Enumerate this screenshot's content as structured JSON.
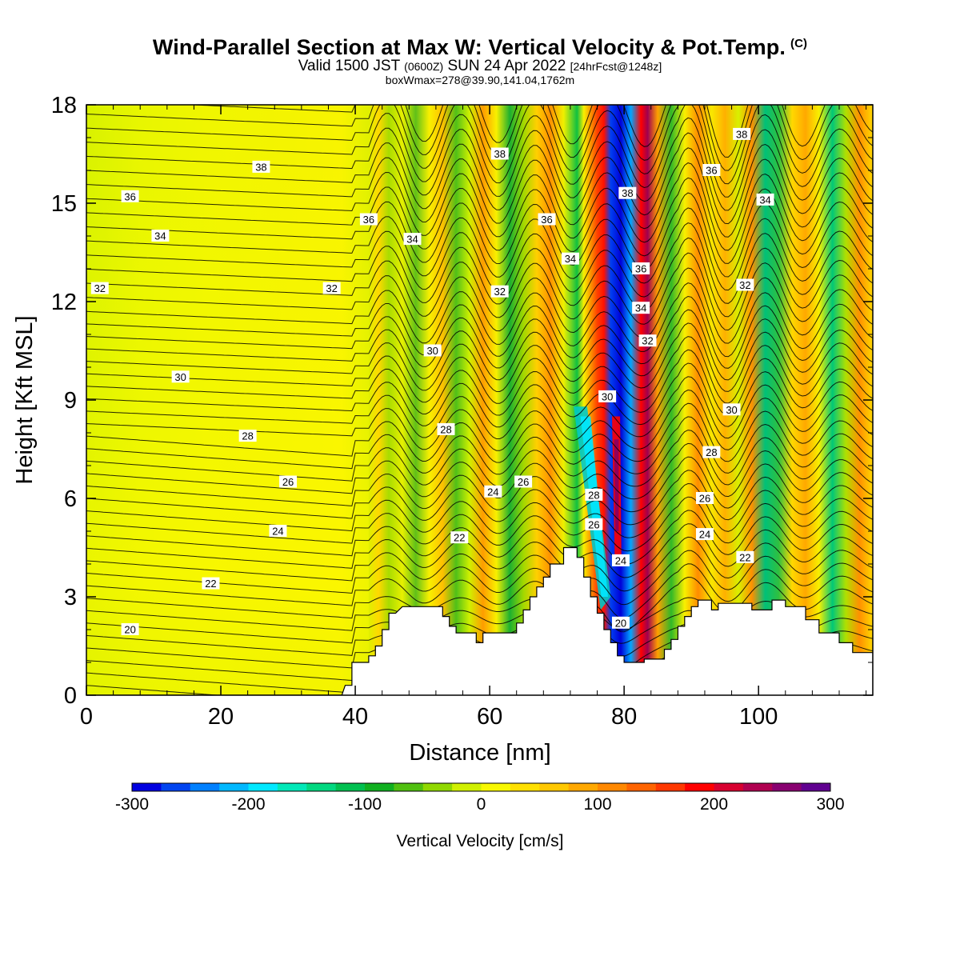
{
  "header": {
    "title_main": "Wind-Parallel Section at Max W: Vertical Velocity & Pot.Temp.",
    "title_mark": "(C)",
    "subtitle_part1": "Valid 1500 JST",
    "subtitle_utc": "(0600Z)",
    "subtitle_part2": "SUN 24 Apr 2022",
    "subtitle_fcst": "[24hrFcst@1248z]",
    "box_info": "boxWmax=278@39.90,141.04,1762m"
  },
  "chart_data": {
    "type": "heatmap",
    "xlabel": "Distance [nm]",
    "ylabel": "Height [Kft MSL]",
    "xlim": [
      0,
      117
    ],
    "ylim": [
      0,
      18
    ],
    "x_ticks": [
      "0",
      "20",
      "40",
      "60",
      "80",
      "100"
    ],
    "y_ticks": [
      "0",
      "3",
      "6",
      "9",
      "12",
      "15",
      "18"
    ],
    "colorbar": {
      "label": "Vertical Velocity [cm/s]",
      "tick_labels": [
        "-300",
        "-200",
        "-100",
        "0",
        "100",
        "200",
        "300"
      ],
      "range": [
        -300,
        300
      ],
      "colors": [
        "#0000e0",
        "#0044f0",
        "#0080ff",
        "#00b8ff",
        "#00e8ff",
        "#00e8b8",
        "#00d880",
        "#00c050",
        "#10b020",
        "#50c010",
        "#90d800",
        "#d0f000",
        "#f8f800",
        "#ffe000",
        "#ffc800",
        "#ffa800",
        "#ff8800",
        "#ff6400",
        "#ff3800",
        "#ff0000",
        "#d80030",
        "#b00050",
        "#880070",
        "#600090"
      ]
    },
    "theta_contour_labels": [
      {
        "value": "20",
        "x": 6.5,
        "y": 2.0
      },
      {
        "value": "22",
        "x": 18.5,
        "y": 3.4
      },
      {
        "value": "24",
        "x": 28.5,
        "y": 5.0
      },
      {
        "value": "26",
        "x": 30.0,
        "y": 6.5
      },
      {
        "value": "28",
        "x": 24.0,
        "y": 7.9
      },
      {
        "value": "30",
        "x": 14.0,
        "y": 9.7
      },
      {
        "value": "32",
        "x": 2.0,
        "y": 12.4
      },
      {
        "value": "34",
        "x": 11.0,
        "y": 14.0
      },
      {
        "value": "36",
        "x": 6.5,
        "y": 15.2
      },
      {
        "value": "38",
        "x": 26.0,
        "y": 16.1
      },
      {
        "value": "32",
        "x": 36.5,
        "y": 12.4
      },
      {
        "value": "36",
        "x": 42.0,
        "y": 14.5
      },
      {
        "value": "34",
        "x": 48.5,
        "y": 13.9
      },
      {
        "value": "30",
        "x": 51.5,
        "y": 10.5
      },
      {
        "value": "28",
        "x": 53.5,
        "y": 8.1
      },
      {
        "value": "22",
        "x": 55.5,
        "y": 4.8
      },
      {
        "value": "24",
        "x": 60.5,
        "y": 6.2
      },
      {
        "value": "26",
        "x": 65.0,
        "y": 6.5
      },
      {
        "value": "32",
        "x": 61.5,
        "y": 12.3
      },
      {
        "value": "38",
        "x": 61.5,
        "y": 16.5
      },
      {
        "value": "36",
        "x": 68.5,
        "y": 14.5
      },
      {
        "value": "34",
        "x": 72.0,
        "y": 13.3
      },
      {
        "value": "28",
        "x": 75.5,
        "y": 6.1
      },
      {
        "value": "26",
        "x": 75.5,
        "y": 5.2
      },
      {
        "value": "24",
        "x": 79.5,
        "y": 4.1
      },
      {
        "value": "20",
        "x": 79.5,
        "y": 2.2
      },
      {
        "value": "30",
        "x": 77.5,
        "y": 9.1
      },
      {
        "value": "38",
        "x": 80.5,
        "y": 15.3
      },
      {
        "value": "36",
        "x": 82.5,
        "y": 13.0
      },
      {
        "value": "34",
        "x": 82.5,
        "y": 11.8
      },
      {
        "value": "32",
        "x": 83.5,
        "y": 10.8
      },
      {
        "value": "30",
        "x": 96.0,
        "y": 8.7
      },
      {
        "value": "28",
        "x": 93.0,
        "y": 7.4
      },
      {
        "value": "26",
        "x": 92.0,
        "y": 6.0
      },
      {
        "value": "24",
        "x": 92.0,
        "y": 4.9
      },
      {
        "value": "22",
        "x": 98.0,
        "y": 4.2
      },
      {
        "value": "32",
        "x": 98.0,
        "y": 12.5
      },
      {
        "value": "34",
        "x": 101.0,
        "y": 15.1
      },
      {
        "value": "36",
        "x": 93.0,
        "y": 16.0
      },
      {
        "value": "38",
        "x": 97.5,
        "y": 17.1
      }
    ],
    "terrain_outline": [
      [
        0,
        0
      ],
      [
        38,
        0
      ],
      [
        38.5,
        0.3
      ],
      [
        39.5,
        0.3
      ],
      [
        39.5,
        1.0
      ],
      [
        42,
        1.0
      ],
      [
        42,
        1.2
      ],
      [
        43,
        1.2
      ],
      [
        43,
        1.5
      ],
      [
        44,
        1.5
      ],
      [
        44,
        2.0
      ],
      [
        45,
        2.0
      ],
      [
        45,
        2.5
      ],
      [
        46,
        2.5
      ],
      [
        47,
        2.7
      ],
      [
        50,
        2.7
      ],
      [
        50,
        2.7
      ],
      [
        53,
        2.7
      ],
      [
        53,
        2.4
      ],
      [
        54,
        2.4
      ],
      [
        54,
        2.1
      ],
      [
        55,
        2.1
      ],
      [
        55,
        1.9
      ],
      [
        58,
        1.9
      ],
      [
        58,
        1.6
      ],
      [
        59,
        1.6
      ],
      [
        59,
        1.9
      ],
      [
        64,
        1.9
      ],
      [
        64,
        2.2
      ],
      [
        65,
        2.2
      ],
      [
        65,
        2.6
      ],
      [
        66,
        2.6
      ],
      [
        66,
        3.0
      ],
      [
        67,
        3.0
      ],
      [
        67,
        3.3
      ],
      [
        68,
        3.3
      ],
      [
        68,
        3.6
      ],
      [
        69,
        3.6
      ],
      [
        69,
        4.0
      ],
      [
        71,
        4.0
      ],
      [
        71,
        4.5
      ],
      [
        73,
        4.5
      ],
      [
        73,
        4.2
      ],
      [
        74,
        4.2
      ],
      [
        74,
        3.6
      ],
      [
        75,
        3.6
      ],
      [
        75,
        3.0
      ],
      [
        76,
        3.0
      ],
      [
        76,
        2.5
      ],
      [
        77,
        2.5
      ],
      [
        77,
        2.0
      ],
      [
        78,
        2.0
      ],
      [
        78,
        1.6
      ],
      [
        79,
        1.6
      ],
      [
        79,
        1.2
      ],
      [
        80,
        1.2
      ],
      [
        80,
        1.0
      ],
      [
        83,
        1.0
      ],
      [
        83,
        1.1
      ],
      [
        86,
        1.1
      ],
      [
        86,
        1.4
      ],
      [
        87,
        1.4
      ],
      [
        87,
        1.7
      ],
      [
        88,
        1.7
      ],
      [
        88,
        2.1
      ],
      [
        89,
        2.1
      ],
      [
        89,
        2.4
      ],
      [
        90,
        2.4
      ],
      [
        90,
        2.7
      ],
      [
        91,
        2.7
      ],
      [
        91,
        2.9
      ],
      [
        93,
        2.9
      ],
      [
        93,
        2.6
      ],
      [
        94,
        2.6
      ],
      [
        94,
        2.8
      ],
      [
        97,
        2.8
      ],
      [
        97,
        2.8
      ],
      [
        99,
        2.8
      ],
      [
        99,
        2.6
      ],
      [
        102,
        2.6
      ],
      [
        102,
        2.9
      ],
      [
        104,
        2.9
      ],
      [
        104,
        2.7
      ],
      [
        107,
        2.7
      ],
      [
        107,
        2.3
      ],
      [
        109,
        2.3
      ],
      [
        109,
        1.9
      ],
      [
        112,
        1.9
      ],
      [
        112,
        1.6
      ],
      [
        114,
        1.6
      ],
      [
        114,
        1.3
      ],
      [
        117,
        1.3
      ],
      [
        117,
        0
      ]
    ]
  }
}
